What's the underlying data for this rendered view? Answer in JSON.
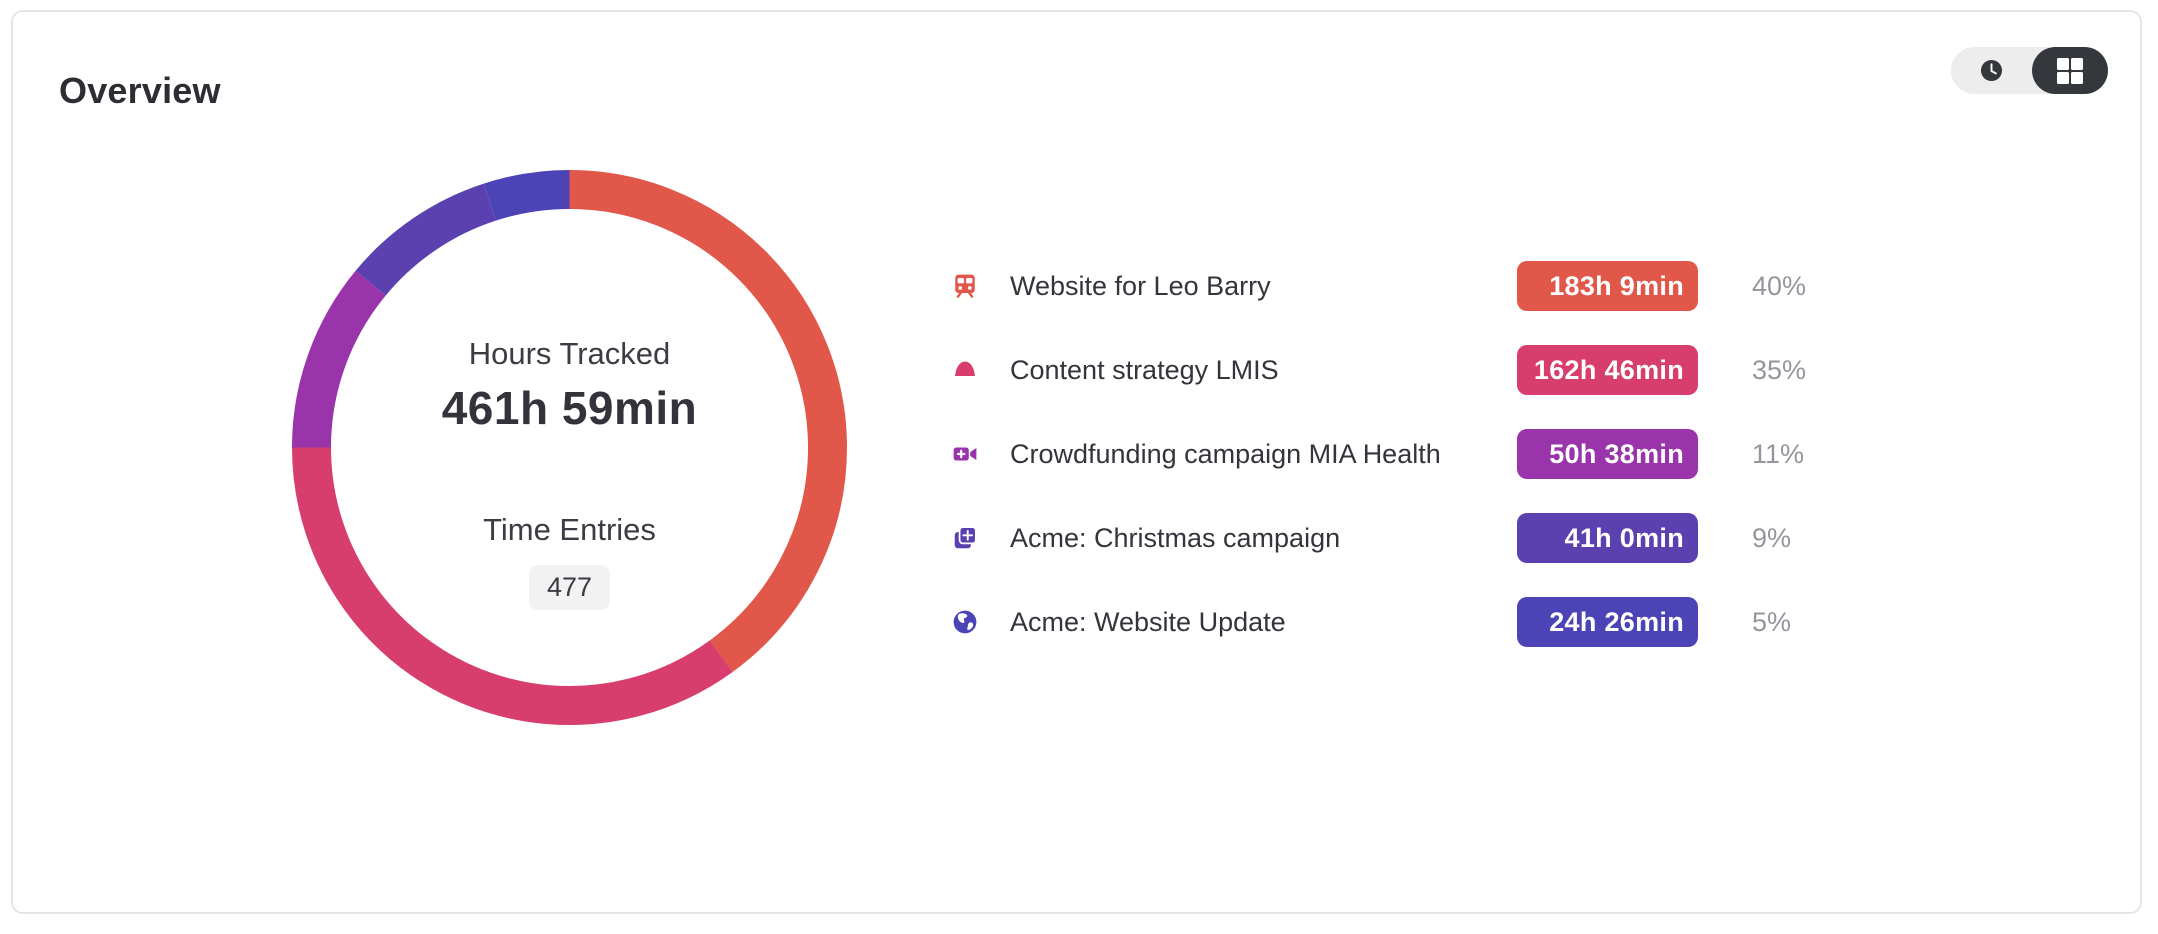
{
  "header": {
    "title": "Overview"
  },
  "view_toggle": {
    "options": [
      {
        "id": "time-view",
        "icon": "clock-icon",
        "active": false
      },
      {
        "id": "grid-view",
        "icon": "grid-icon",
        "active": true
      }
    ],
    "active_color": "#34383d",
    "track_color": "#ededee"
  },
  "chart_data": {
    "type": "pie",
    "variant": "donut",
    "start_angle_deg": 0,
    "direction": "clockwise",
    "center": {
      "hours_label": "Hours Tracked",
      "hours_value": "461h 59min",
      "entries_label": "Time Entries",
      "entries_count": "477"
    },
    "series": [
      {
        "name": "Website for Leo Barry",
        "duration": "183h 9min",
        "percent": 40,
        "percent_label": "40%",
        "color": "#E15749",
        "icon": "train-icon"
      },
      {
        "name": "Content strategy LMIS",
        "duration": "162h 46min",
        "percent": 35,
        "percent_label": "35%",
        "color": "#D73D6D",
        "icon": "dome-icon"
      },
      {
        "name": "Crowdfunding campaign MIA Health",
        "duration": "50h 38min",
        "percent": 11,
        "percent_label": "11%",
        "color": "#9934AB",
        "icon": "video-plus-icon"
      },
      {
        "name": "Acme: Christmas campaign",
        "duration": "41h 0min",
        "percent": 9,
        "percent_label": "9%",
        "color": "#5B41B0",
        "icon": "copy-plus-icon"
      },
      {
        "name": "Acme: Website Update",
        "duration": "24h 26min",
        "percent": 5,
        "percent_label": "5%",
        "color": "#4C44B6",
        "icon": "globe-icon"
      }
    ]
  }
}
